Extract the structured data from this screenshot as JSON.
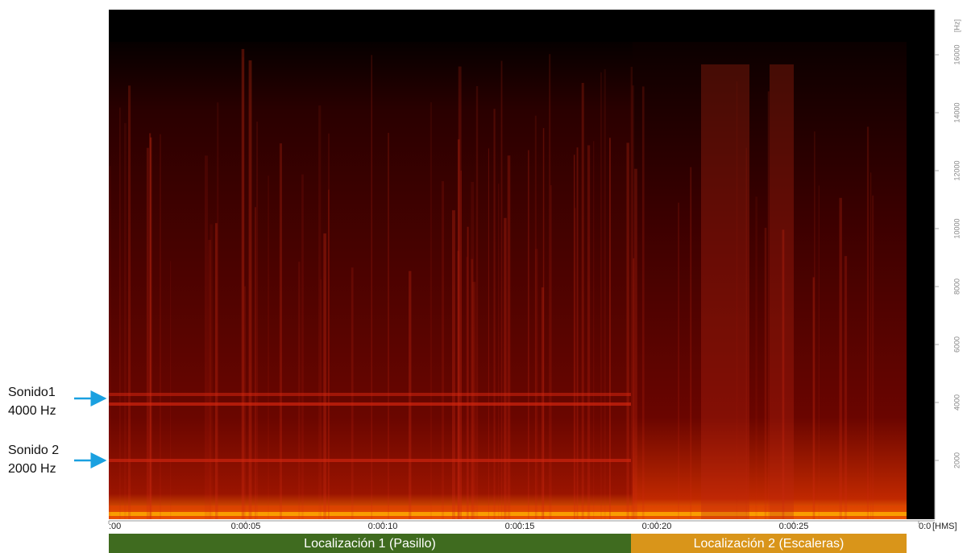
{
  "annotations": [
    {
      "name": "Sonido1",
      "freq": "4000 Hz"
    },
    {
      "name": "Sonido 2",
      "freq": "2000 Hz"
    }
  ],
  "time_axis": {
    "labels": [
      ":00",
      "0:00:05",
      "0:00:10",
      "0:00:15",
      "0:00:20",
      "0:00:25",
      "0:0"
    ],
    "unit": "[HMS]"
  },
  "frequency_axis": {
    "labels": [
      "2000",
      "4000",
      "6000",
      "8000",
      "10000",
      "12000",
      "14000",
      "16000"
    ],
    "unit": "[Hz]"
  },
  "segments": [
    {
      "label": "Localización 1 (Pasillo)"
    },
    {
      "label": "Localización 2 (Escaleras)"
    }
  ]
}
